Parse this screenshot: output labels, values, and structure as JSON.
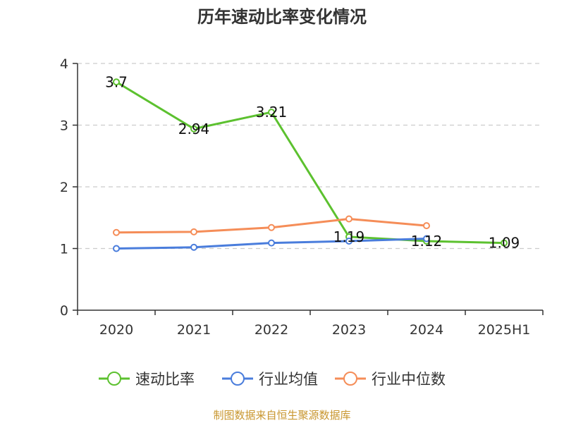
{
  "chart_data": {
    "type": "line",
    "title": "历年速动比率变化情况",
    "categories": [
      "2020",
      "2021",
      "2022",
      "2023",
      "2024",
      "2025H1"
    ],
    "ylim": [
      0,
      4
    ],
    "yticks": [
      0,
      1,
      2,
      3,
      4
    ],
    "grid": true,
    "legend_position": "bottom",
    "series": [
      {
        "name": "速动比率",
        "color": "#5cc12f",
        "values": [
          3.7,
          2.94,
          3.21,
          1.19,
          1.12,
          1.09
        ],
        "labels": [
          "3.7",
          "2.94",
          "3.21",
          "1.19",
          "1.12",
          "1.09"
        ]
      },
      {
        "name": "行业均值",
        "color": "#4a7ddc",
        "values": [
          1.0,
          1.02,
          1.09,
          1.12,
          1.16,
          null
        ]
      },
      {
        "name": "行业中位数",
        "color": "#f58d58",
        "values": [
          1.26,
          1.27,
          1.34,
          1.48,
          1.37,
          null
        ]
      }
    ],
    "source": "制图数据来自恒生聚源数据库"
  }
}
